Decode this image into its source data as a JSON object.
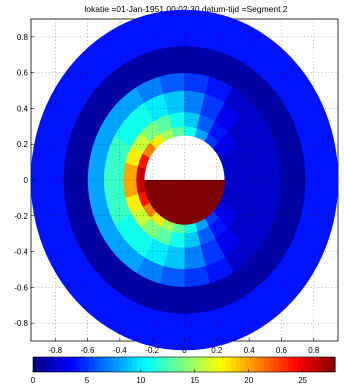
{
  "chart_data": {
    "type": "heatmap",
    "title": "lokatie =01-Jan-1951 00:02:30  datum-tijd =Segment     2",
    "xlabel": "",
    "ylabel": "",
    "xlim": [
      -0.95,
      0.95
    ],
    "ylim": [
      -0.9,
      0.9
    ],
    "grid": true,
    "x_ticks": [
      "-0.8",
      "-0.6",
      "-0.4",
      "-0.2",
      "0",
      "0.2",
      "0.4",
      "0.6",
      "0.8"
    ],
    "x_tick_values": [
      -0.8,
      -0.6,
      -0.4,
      -0.2,
      0,
      0.2,
      0.4,
      0.6,
      0.8
    ],
    "y_ticks": [
      "0.8",
      "0.6",
      "0.4",
      "0.2",
      "0",
      "-0.2",
      "-0.4",
      "-0.6",
      "-0.8"
    ],
    "y_tick_values": [
      0.8,
      0.6,
      0.4,
      0.2,
      0,
      -0.2,
      -0.4,
      -0.6,
      -0.8
    ],
    "colorbar": {
      "range": [
        0,
        28
      ],
      "ticks": [
        "0",
        "5",
        "10",
        "15",
        "20",
        "25"
      ],
      "tick_values": [
        0,
        5,
        10,
        15,
        20,
        25
      ],
      "colormap": "jet"
    },
    "hole_radius": 0.25,
    "rings": [
      {
        "r_inner": 0.25,
        "r_outer": 0.3,
        "values": [
          2,
          2,
          3,
          5,
          8,
          11,
          13,
          15,
          18,
          21,
          24,
          26,
          26,
          24,
          21,
          18,
          15,
          13,
          11,
          8,
          5,
          3,
          2,
          2
        ]
      },
      {
        "r_inner": 0.3,
        "r_outer": 0.38,
        "values": [
          2,
          2,
          3,
          4,
          6,
          9,
          11,
          13,
          14,
          16,
          18,
          20,
          20,
          18,
          16,
          14,
          13,
          11,
          9,
          6,
          4,
          3,
          2,
          2
        ]
      },
      {
        "r_inner": 0.38,
        "r_outer": 0.5,
        "values": [
          2,
          2,
          2,
          3,
          5,
          7,
          9,
          10,
          11,
          11,
          12,
          12,
          12,
          12,
          11,
          11,
          10,
          9,
          7,
          5,
          3,
          2,
          2,
          2
        ]
      },
      {
        "r_inner": 0.5,
        "r_outer": 0.6,
        "values": [
          2,
          2,
          2,
          2,
          4,
          5,
          6,
          7,
          8,
          8,
          8,
          8,
          8,
          8,
          8,
          8,
          7,
          6,
          5,
          4,
          2,
          2,
          2,
          2
        ]
      },
      {
        "r_inner": 0.6,
        "r_outer": 0.75,
        "values": [
          1,
          1,
          1,
          1,
          1,
          1,
          1,
          1,
          1,
          1,
          1,
          1,
          1,
          1,
          1,
          1,
          1,
          1,
          1,
          1,
          1,
          1,
          1,
          1
        ]
      },
      {
        "r_inner": 0.75,
        "r_outer": 0.95,
        "values": [
          4,
          4,
          4,
          4,
          4,
          4,
          4,
          4,
          4,
          4,
          4,
          4,
          4,
          4,
          4,
          4,
          4,
          4,
          4,
          4,
          4,
          4,
          4,
          4
        ]
      }
    ],
    "fill_region": {
      "shape": "half-disc-below-y0",
      "r": 0.25,
      "value": 28
    },
    "sector_start_deg": 0,
    "sector_direction": "clockwise"
  }
}
